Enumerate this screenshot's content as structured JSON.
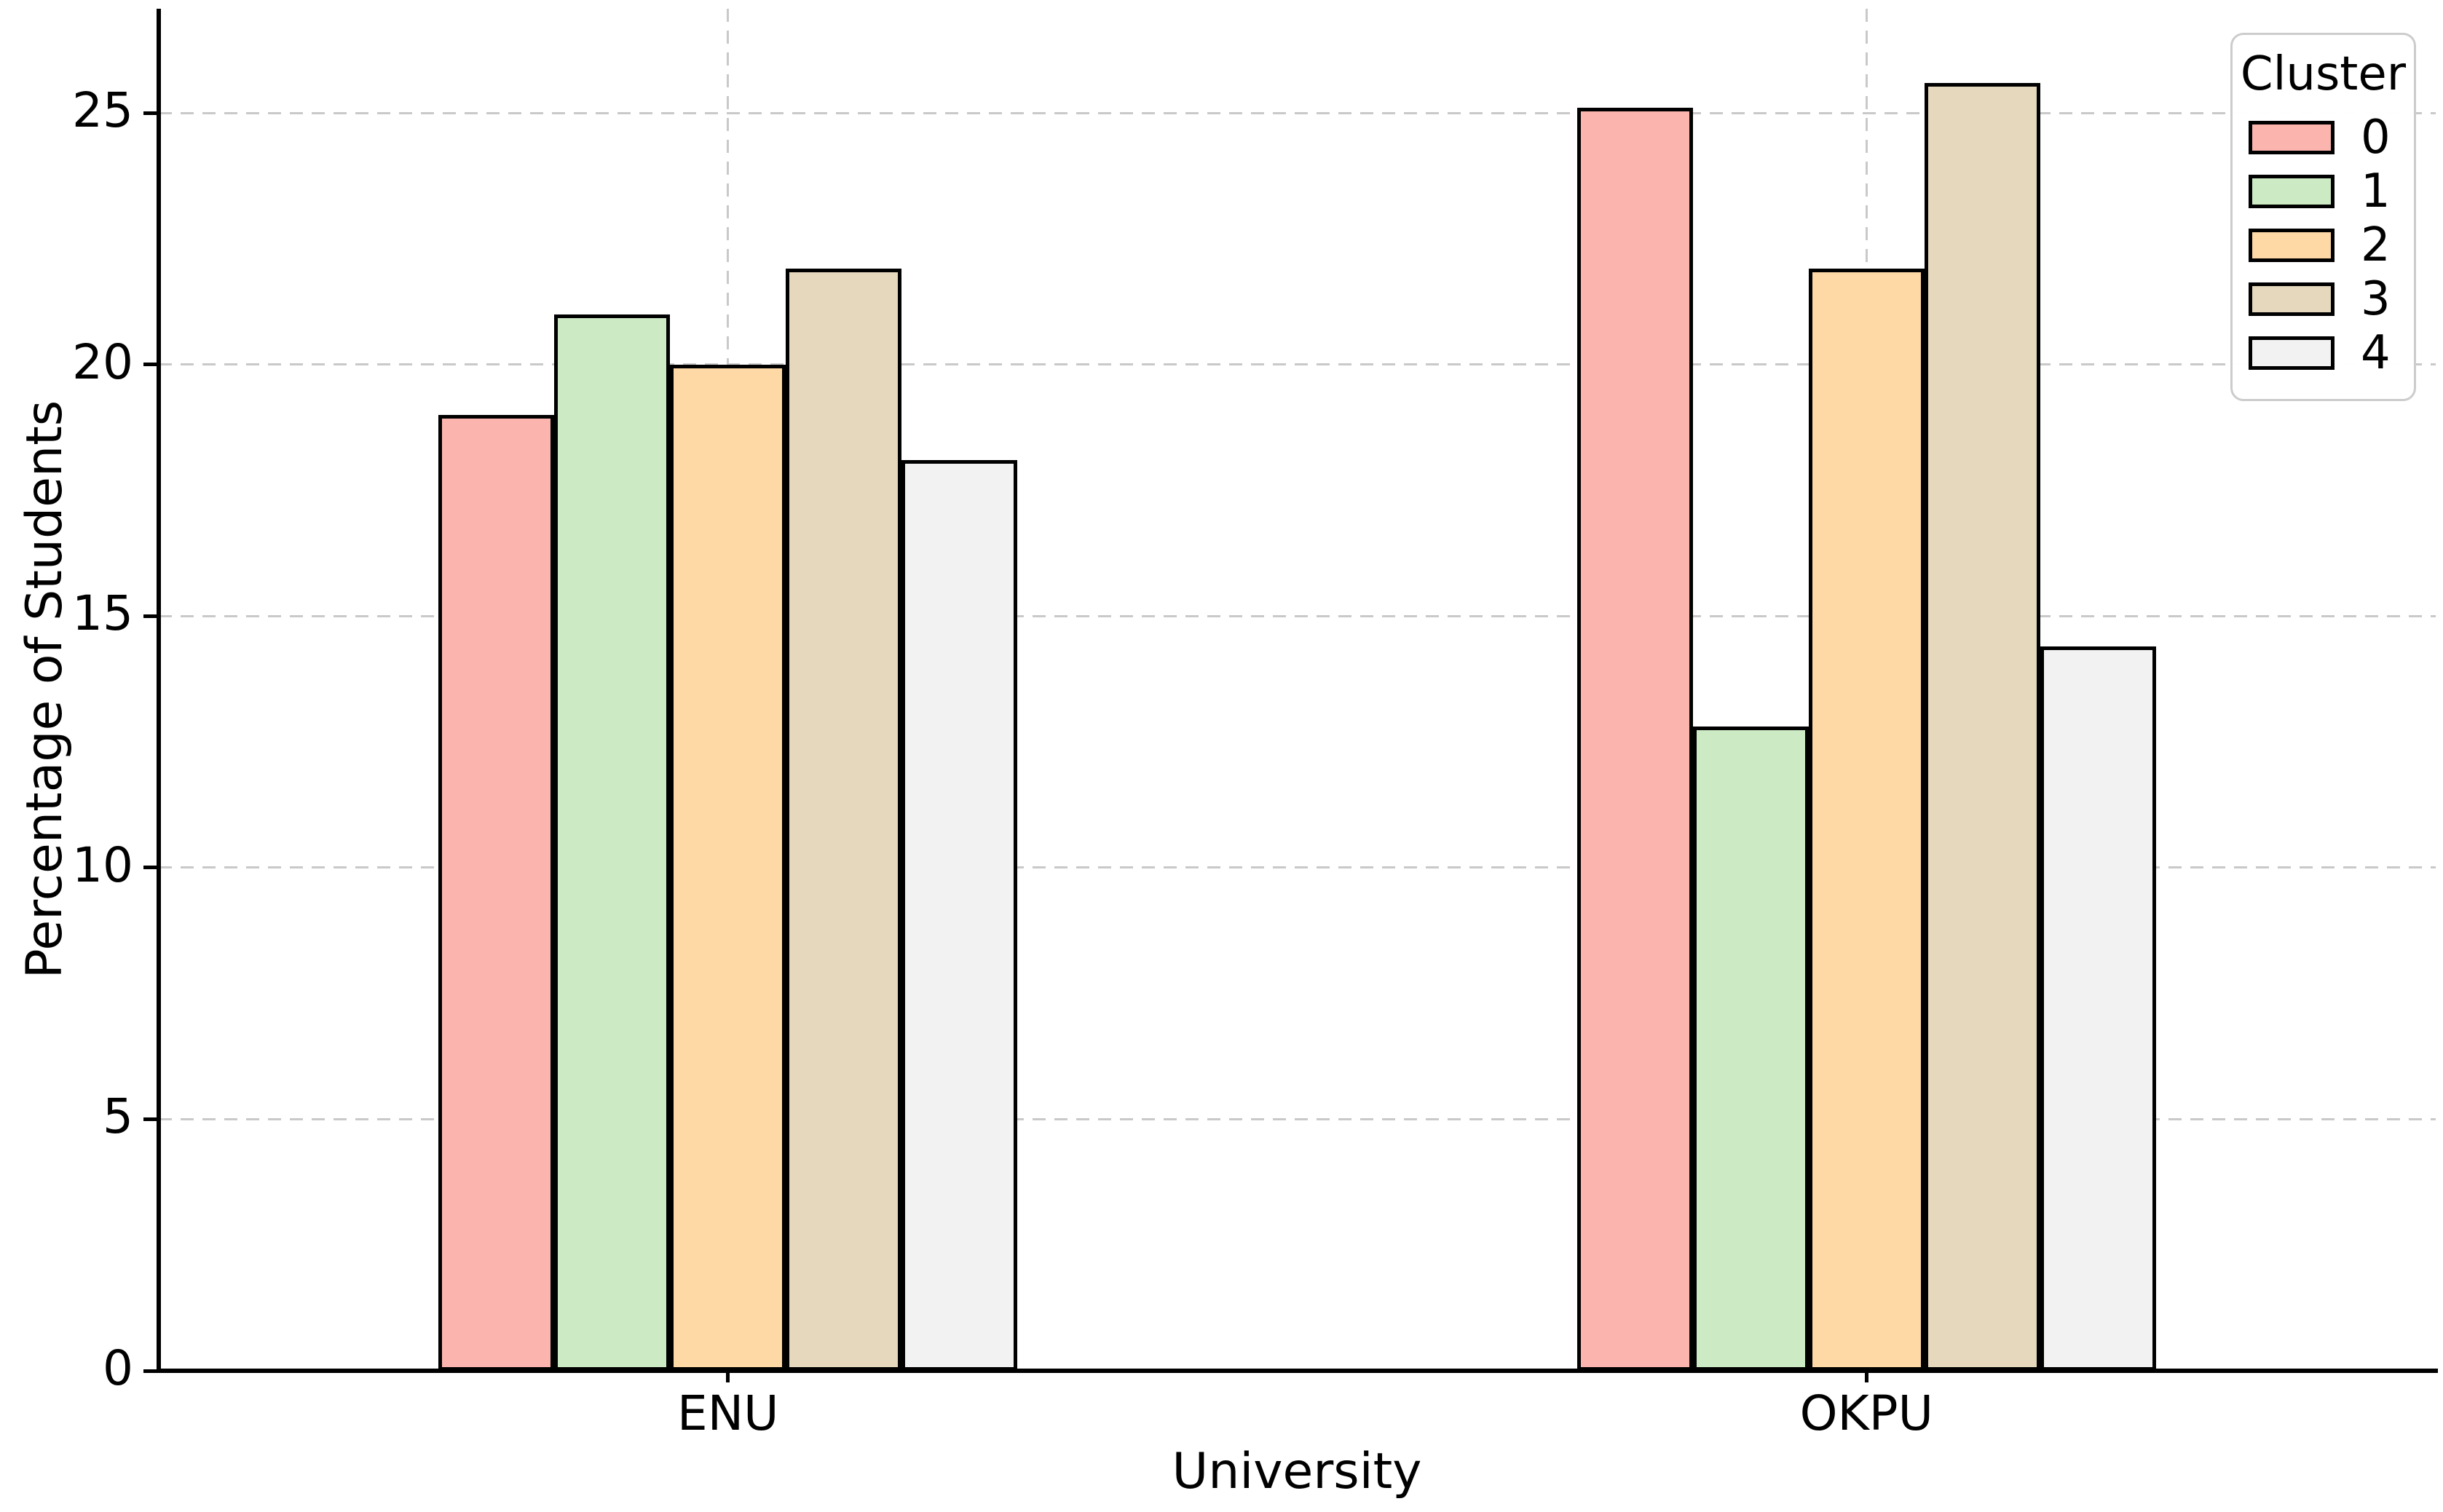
{
  "chart_data": {
    "type": "bar",
    "title": "",
    "xlabel": "University",
    "ylabel": "Percentage of Students",
    "categories": [
      "ENU",
      "OKPU"
    ],
    "series": [
      {
        "name": "0",
        "color": "#fbb4ae",
        "values": [
          19.0,
          25.1
        ]
      },
      {
        "name": "1",
        "color": "#ccebc5",
        "values": [
          21.0,
          12.8
        ]
      },
      {
        "name": "2",
        "color": "#fed9a6",
        "values": [
          20.0,
          21.9
        ]
      },
      {
        "name": "3",
        "color": "#e5d8bd",
        "values": [
          21.9,
          25.6
        ]
      },
      {
        "name": "4",
        "color": "#f2f2f2",
        "values": [
          18.1,
          14.4
        ]
      }
    ],
    "legend": {
      "title": "Cluster",
      "entries": [
        "0",
        "1",
        "2",
        "3",
        "4"
      ],
      "position": "upper right"
    },
    "ylim": [
      0,
      27.07
    ],
    "yticks": [
      0,
      5,
      10,
      15,
      20,
      25
    ],
    "grid": {
      "show": true,
      "style": "dashed",
      "color": "#c9c9c9",
      "axes": "both"
    },
    "bar_edge_color": "#000000",
    "axis_color": "#000000"
  }
}
